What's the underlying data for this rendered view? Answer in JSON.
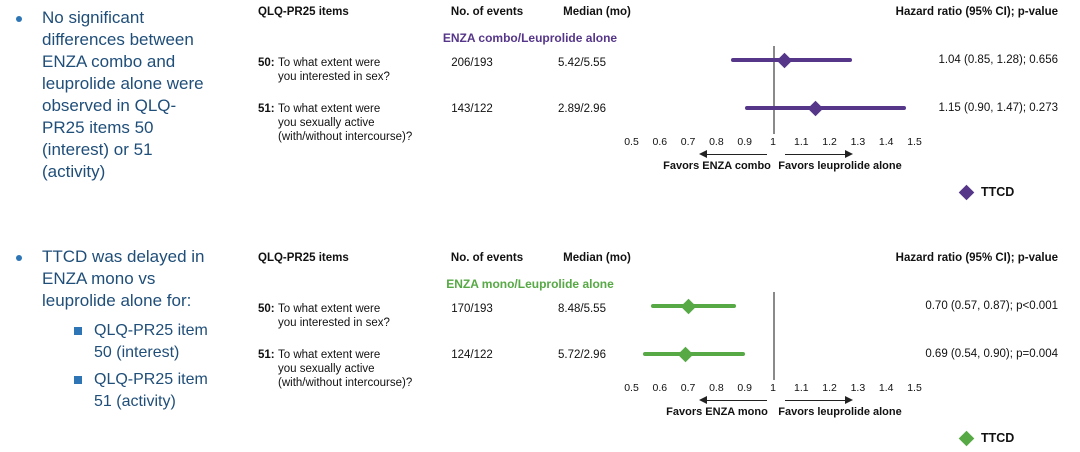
{
  "bullets": {
    "b1": "No significant\ndifferences between\nENZA combo and\nleuprolide alone were\nobserved in QLQ-\nPR25 items 50\n(interest) or 51\n(activity)",
    "b2": "TTCD was delayed in\nENZA mono vs\nleuprolide alone for:",
    "b2_sub1": "QLQ-PR25 item\n50 (interest)",
    "b2_sub2": "QLQ-PR25 item\n51 (activity)"
  },
  "columns": {
    "items": "QLQ-PR25 items",
    "events": "No. of events",
    "median": "Median (mo)",
    "hr": "Hazard ratio (95% CI); p-value"
  },
  "legend_label": "TTCD",
  "chart_data": [
    {
      "type": "forest",
      "comparison": "ENZA combo/Leuprolide alone",
      "color": "#553689",
      "favors_left": "Favors ENZA combo",
      "favors_right": "Favors leuprolide alone",
      "axis": {
        "min": 0.5,
        "max": 1.5,
        "ref": 1,
        "ticks": [
          0.5,
          0.6,
          0.7,
          0.8,
          0.9,
          1,
          1.1,
          1.2,
          1.3,
          1.4,
          1.5
        ]
      },
      "rows": [
        {
          "num": "50:",
          "label": "To what extent were\nyou interested in sex?",
          "events": "206/193",
          "median": "5.42/5.55",
          "hr": 1.04,
          "ci": [
            0.85,
            1.28
          ],
          "hr_text": "1.04 (0.85, 1.28); 0.656"
        },
        {
          "num": "51:",
          "label": "To what extent were\nyou sexually active\n(with/without intercourse)?",
          "events": "143/122",
          "median": "2.89/2.96",
          "hr": 1.15,
          "ci": [
            0.9,
            1.47
          ],
          "hr_text": "1.15 (0.90, 1.47); 0.273"
        }
      ]
    },
    {
      "type": "forest",
      "comparison": "ENZA mono/Leuprolide alone",
      "color": "#56A944",
      "favors_left": "Favors ENZA mono",
      "favors_right": "Favors leuprolide alone",
      "axis": {
        "min": 0.5,
        "max": 1.5,
        "ref": 1,
        "ticks": [
          0.5,
          0.6,
          0.7,
          0.8,
          0.9,
          1,
          1.1,
          1.2,
          1.3,
          1.4,
          1.5
        ]
      },
      "rows": [
        {
          "num": "50:",
          "label": "To what extent were\nyou interested in sex?",
          "events": "170/193",
          "median": "8.48/5.55",
          "hr": 0.7,
          "ci": [
            0.57,
            0.87
          ],
          "hr_text": "0.70 (0.57, 0.87); p<0.001"
        },
        {
          "num": "51:",
          "label": "To what extent were\nyou sexually active\n(with/without intercourse)?",
          "events": "124/122",
          "median": "5.72/2.96",
          "hr": 0.69,
          "ci": [
            0.54,
            0.9
          ],
          "hr_text": "0.69 (0.54, 0.90); p=0.004"
        }
      ]
    }
  ]
}
